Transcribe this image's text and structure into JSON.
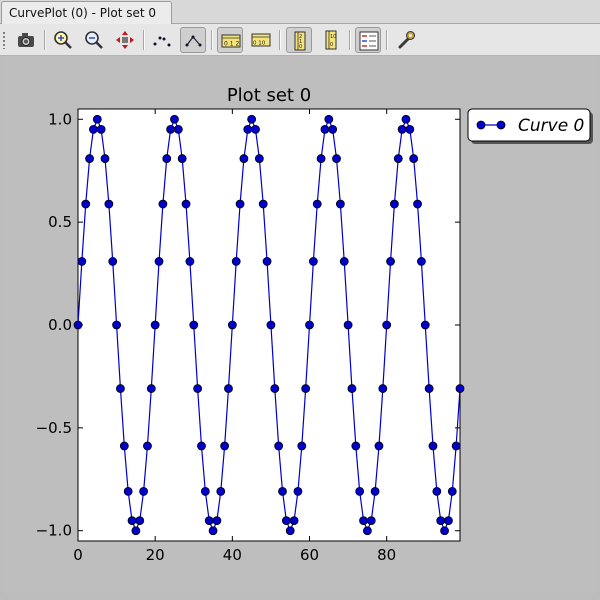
{
  "window": {
    "tab_title": "CurvePlot (0) - Plot set 0"
  },
  "toolbar": {
    "buttons": [
      {
        "name": "camera-icon",
        "checked": false
      },
      {
        "name": "zoom-in-icon",
        "checked": false
      },
      {
        "name": "zoom-out-icon",
        "checked": false
      },
      {
        "name": "pan-icon",
        "checked": false
      },
      {
        "name": "markers-only-icon",
        "checked": false
      },
      {
        "name": "lines-icon",
        "checked": true
      },
      {
        "name": "x-axis-scale-icon",
        "checked": true
      },
      {
        "name": "y-axis-scale-icon",
        "checked": false
      },
      {
        "name": "x-log-scale-icon",
        "checked": true
      },
      {
        "name": "y-log-scale-icon",
        "checked": false
      },
      {
        "name": "legend-icon",
        "checked": true
      },
      {
        "name": "settings-wrench-icon",
        "checked": false
      }
    ]
  },
  "colors": {
    "series": "#0000cc",
    "background": "#bebebe"
  },
  "chart_data": {
    "type": "line",
    "title": "Plot set 0",
    "xlabel": "",
    "ylabel": "",
    "xlim": [
      0,
      99
    ],
    "ylim": [
      -1.05,
      1.05
    ],
    "xticks": [
      0,
      20,
      40,
      60,
      80
    ],
    "yticks": [
      -1.0,
      -0.5,
      0.0,
      0.5,
      1.0
    ],
    "x_tick_labels": [
      "0",
      "20",
      "40",
      "60",
      "80"
    ],
    "y_tick_labels": [
      "−1.0",
      "−0.5",
      "0.0",
      "0.5",
      "1.0"
    ],
    "grid": false,
    "legend": "outside-top-right",
    "series": [
      {
        "name": "Curve 0",
        "marker": "circle",
        "x": [
          0,
          1,
          2,
          3,
          4,
          5,
          6,
          7,
          8,
          9,
          10,
          11,
          12,
          13,
          14,
          15,
          16,
          17,
          18,
          19,
          20,
          21,
          22,
          23,
          24,
          25,
          26,
          27,
          28,
          29,
          30,
          31,
          32,
          33,
          34,
          35,
          36,
          37,
          38,
          39,
          40,
          41,
          42,
          43,
          44,
          45,
          46,
          47,
          48,
          49,
          50,
          51,
          52,
          53,
          54,
          55,
          56,
          57,
          58,
          59,
          60,
          61,
          62,
          63,
          64,
          65,
          66,
          67,
          68,
          69,
          70,
          71,
          72,
          73,
          74,
          75,
          76,
          77,
          78,
          79,
          80,
          81,
          82,
          83,
          84,
          85,
          86,
          87,
          88,
          89,
          90,
          91,
          92,
          93,
          94,
          95,
          96,
          97,
          98,
          99
        ],
        "y": [
          0.0,
          0.309,
          0.588,
          0.809,
          0.951,
          1.0,
          0.951,
          0.809,
          0.588,
          0.309,
          0.0,
          -0.309,
          -0.588,
          -0.809,
          -0.951,
          -1.0,
          -0.951,
          -0.809,
          -0.588,
          -0.309,
          0.0,
          0.309,
          0.588,
          0.809,
          0.951,
          1.0,
          0.951,
          0.809,
          0.588,
          0.309,
          0.0,
          -0.309,
          -0.588,
          -0.809,
          -0.951,
          -1.0,
          -0.951,
          -0.809,
          -0.588,
          -0.309,
          0.0,
          0.309,
          0.588,
          0.809,
          0.951,
          1.0,
          0.951,
          0.809,
          0.588,
          0.309,
          0.0,
          -0.309,
          -0.588,
          -0.809,
          -0.951,
          -1.0,
          -0.951,
          -0.809,
          -0.588,
          -0.309,
          0.0,
          0.309,
          0.588,
          0.809,
          0.951,
          1.0,
          0.951,
          0.809,
          0.588,
          0.309,
          0.0,
          -0.309,
          -0.588,
          -0.809,
          -0.951,
          -1.0,
          -0.951,
          -0.809,
          -0.588,
          -0.309,
          0.0,
          0.309,
          0.588,
          0.809,
          0.951,
          1.0,
          0.951,
          0.809,
          0.588,
          0.309,
          0.0,
          -0.309,
          -0.588,
          -0.809,
          -0.951,
          -1.0,
          -0.951,
          -0.809,
          -0.588,
          -0.309
        ]
      }
    ]
  }
}
